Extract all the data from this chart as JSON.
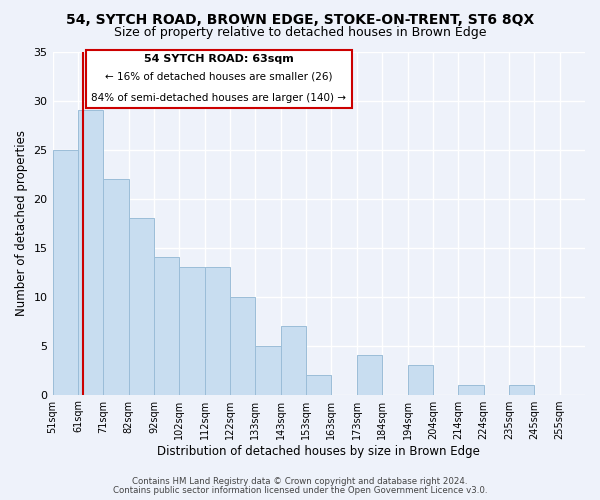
{
  "title": "54, SYTCH ROAD, BROWN EDGE, STOKE-ON-TRENT, ST6 8QX",
  "subtitle": "Size of property relative to detached houses in Brown Edge",
  "xlabel": "Distribution of detached houses by size in Brown Edge",
  "ylabel": "Number of detached properties",
  "bin_labels": [
    "51sqm",
    "61sqm",
    "71sqm",
    "82sqm",
    "92sqm",
    "102sqm",
    "112sqm",
    "122sqm",
    "133sqm",
    "143sqm",
    "153sqm",
    "163sqm",
    "173sqm",
    "184sqm",
    "194sqm",
    "204sqm",
    "214sqm",
    "224sqm",
    "235sqm",
    "245sqm",
    "255sqm"
  ],
  "bar_heights": [
    25,
    29,
    22,
    18,
    14,
    13,
    13,
    10,
    5,
    7,
    2,
    0,
    4,
    0,
    3,
    0,
    1,
    0,
    1,
    0,
    0
  ],
  "bar_color": "#c8ddf0",
  "bar_edge_color": "#9bbdd8",
  "red_line_x": 1.2,
  "annotation_title": "54 SYTCH ROAD: 63sqm",
  "annotation_line1": "← 16% of detached houses are smaller (26)",
  "annotation_line2": "84% of semi-detached houses are larger (140) →",
  "annotation_box_color": "#ffffff",
  "annotation_box_edge": "#cc0000",
  "ylim": [
    0,
    35
  ],
  "yticks": [
    0,
    5,
    10,
    15,
    20,
    25,
    30,
    35
  ],
  "footer1": "Contains HM Land Registry data © Crown copyright and database right 2024.",
  "footer2": "Contains public sector information licensed under the Open Government Licence v3.0.",
  "background_color": "#eef2fa",
  "grid_color": "#ffffff",
  "title_fontsize": 10,
  "subtitle_fontsize": 9
}
